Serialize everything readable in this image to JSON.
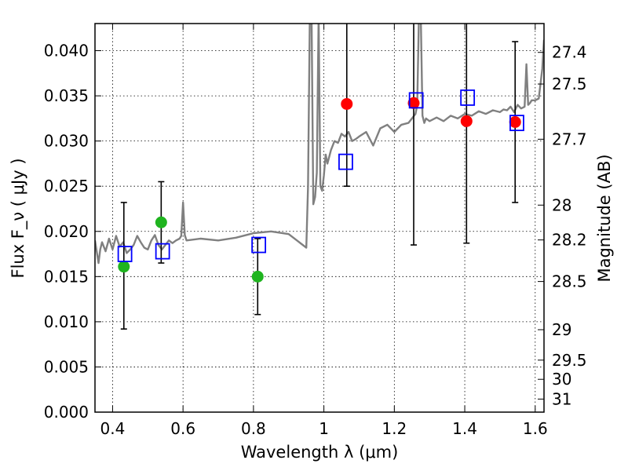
{
  "chart_data": {
    "type": "scatter",
    "xlabel": "Wavelength  λ (μm)",
    "ylabel": "Flux  F_ν  ( μJy )",
    "ylabel_right": "Magnitude (AB)",
    "xlim": [
      0.35,
      1.625
    ],
    "ylim": [
      0.0,
      0.043
    ],
    "grid": true,
    "x_ticks": [
      {
        "value": 0.4,
        "label": "0.4"
      },
      {
        "value": 0.6,
        "label": "0.6"
      },
      {
        "value": 0.8,
        "label": "0.8"
      },
      {
        "value": 1.0,
        "label": "1"
      },
      {
        "value": 1.2,
        "label": "1.2"
      },
      {
        "value": 1.4,
        "label": "1.4"
      },
      {
        "value": 1.6,
        "label": "1.6"
      }
    ],
    "y_ticks": [
      {
        "value": 0.0,
        "label": "0.000"
      },
      {
        "value": 0.005,
        "label": "0.005"
      },
      {
        "value": 0.01,
        "label": "0.010"
      },
      {
        "value": 0.015,
        "label": "0.015"
      },
      {
        "value": 0.02,
        "label": "0.020"
      },
      {
        "value": 0.025,
        "label": "0.025"
      },
      {
        "value": 0.03,
        "label": "0.030"
      },
      {
        "value": 0.035,
        "label": "0.035"
      },
      {
        "value": 0.04,
        "label": "0.040"
      }
    ],
    "mag_ticks": [
      {
        "value": 27.4,
        "label": "27.4"
      },
      {
        "value": 27.5,
        "label": "27.5"
      },
      {
        "value": 27.7,
        "label": "27.7"
      },
      {
        "value": 28.0,
        "label": "28"
      },
      {
        "value": 28.2,
        "label": "28.2"
      },
      {
        "value": 28.5,
        "label": "28.5"
      },
      {
        "value": 29.0,
        "label": "29"
      },
      {
        "value": 29.5,
        "label": "29.5"
      },
      {
        "value": 30.0,
        "label": "30"
      },
      {
        "value": 31.0,
        "label": "31"
      }
    ],
    "model_spectrum": {
      "color": "#808080",
      "x": [
        0.35,
        0.36,
        0.365,
        0.37,
        0.38,
        0.39,
        0.4,
        0.41,
        0.42,
        0.43,
        0.44,
        0.45,
        0.46,
        0.47,
        0.48,
        0.49,
        0.5,
        0.51,
        0.52,
        0.53,
        0.54,
        0.55,
        0.56,
        0.57,
        0.58,
        0.59,
        0.595,
        0.6,
        0.605,
        0.61,
        0.65,
        0.7,
        0.75,
        0.8,
        0.85,
        0.9,
        0.93,
        0.95,
        0.955,
        0.96,
        0.965,
        0.97,
        0.975,
        0.98,
        0.985,
        0.99,
        0.995,
        1.0,
        1.005,
        1.01,
        1.02,
        1.03,
        1.04,
        1.05,
        1.06,
        1.07,
        1.08,
        1.09,
        1.1,
        1.12,
        1.14,
        1.16,
        1.18,
        1.2,
        1.22,
        1.24,
        1.25,
        1.26,
        1.265,
        1.27,
        1.275,
        1.28,
        1.285,
        1.29,
        1.3,
        1.32,
        1.34,
        1.36,
        1.38,
        1.4,
        1.42,
        1.44,
        1.46,
        1.48,
        1.5,
        1.51,
        1.52,
        1.53,
        1.54,
        1.55,
        1.56,
        1.57,
        1.575,
        1.58,
        1.585,
        1.59,
        1.6,
        1.61,
        1.62,
        1.625
      ],
      "y": [
        0.019,
        0.0165,
        0.018,
        0.0188,
        0.0178,
        0.0192,
        0.018,
        0.0195,
        0.0183,
        0.0188,
        0.0176,
        0.018,
        0.0185,
        0.0195,
        0.0188,
        0.0182,
        0.018,
        0.019,
        0.0196,
        0.0185,
        0.018,
        0.0185,
        0.019,
        0.0187,
        0.019,
        0.0192,
        0.0195,
        0.0232,
        0.0196,
        0.019,
        0.0192,
        0.019,
        0.0193,
        0.0198,
        0.02,
        0.0197,
        0.0188,
        0.0182,
        0.025,
        0.044,
        0.044,
        0.023,
        0.0238,
        0.0265,
        0.044,
        0.025,
        0.0245,
        0.0262,
        0.0285,
        0.0275,
        0.029,
        0.03,
        0.0298,
        0.0308,
        0.0305,
        0.031,
        0.03,
        0.0302,
        0.0305,
        0.031,
        0.0295,
        0.0314,
        0.0318,
        0.031,
        0.0318,
        0.032,
        0.0325,
        0.033,
        0.034,
        0.044,
        0.044,
        0.0328,
        0.032,
        0.0325,
        0.0322,
        0.0326,
        0.0322,
        0.0328,
        0.0325,
        0.033,
        0.0328,
        0.0333,
        0.033,
        0.0334,
        0.0332,
        0.0335,
        0.0334,
        0.0338,
        0.0332,
        0.034,
        0.0336,
        0.0338,
        0.0385,
        0.034,
        0.0342,
        0.0345,
        0.0345,
        0.0347,
        0.038,
        0.0412
      ]
    },
    "observed_green": {
      "color": "#1fb41f",
      "points": [
        {
          "x": 0.432,
          "y": 0.0161,
          "yerr_low": 0.0092,
          "yerr_high": 0.0232
        },
        {
          "x": 0.538,
          "y": 0.021,
          "yerr_low": 0.0165,
          "yerr_high": 0.0255
        },
        {
          "x": 0.812,
          "y": 0.015,
          "yerr_low": 0.0108,
          "yerr_high": 0.0192
        }
      ]
    },
    "observed_red": {
      "color": "#ff0000",
      "points": [
        {
          "x": 1.065,
          "y": 0.0341,
          "yerr_low": 0.025,
          "yerr_high": 0.044
        },
        {
          "x": 1.255,
          "y": 0.0342,
          "yerr_low": 0.0185,
          "yerr_high": 0.044
        },
        {
          "x": 1.405,
          "y": 0.0322,
          "yerr_low": 0.0187,
          "yerr_high": 0.044
        },
        {
          "x": 1.543,
          "y": 0.0321,
          "yerr_low": 0.0232,
          "yerr_high": 0.041
        }
      ]
    },
    "model_photometry": {
      "color": "#0000ff",
      "points": [
        {
          "x": 0.435,
          "y": 0.0175
        },
        {
          "x": 0.542,
          "y": 0.0178
        },
        {
          "x": 0.815,
          "y": 0.0185
        },
        {
          "x": 1.062,
          "y": 0.0277
        },
        {
          "x": 1.262,
          "y": 0.0345
        },
        {
          "x": 1.408,
          "y": 0.0348
        },
        {
          "x": 1.548,
          "y": 0.032
        }
      ]
    }
  }
}
